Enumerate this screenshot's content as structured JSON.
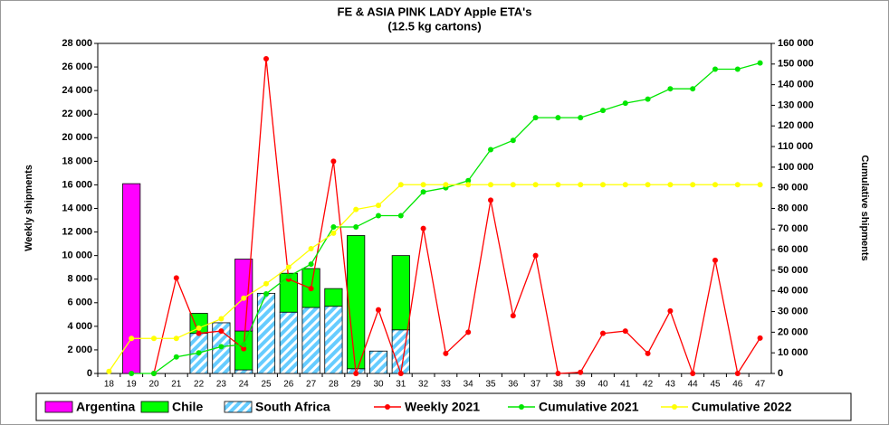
{
  "chart_data": {
    "type": "bar",
    "title": "FE & ASIA PINK LADY Apple ETA's",
    "subtitle": "(12.5 kg cartons)",
    "y_label": "Weekly shipments",
    "y2_label": "Cumulative shipments",
    "categories": [
      "18",
      "19",
      "20",
      "21",
      "22",
      "23",
      "24",
      "25",
      "26",
      "27",
      "28",
      "29",
      "30",
      "31",
      "32",
      "33",
      "34",
      "35",
      "36",
      "37",
      "38",
      "39",
      "40",
      "41",
      "42",
      "43",
      "44",
      "45",
      "46",
      "47"
    ],
    "ylim": [
      0,
      28000
    ],
    "yticks": [
      0,
      {
        "value": 2000,
        "label": "2 000"
      },
      {
        "value": 4000,
        "label": "4 000"
      },
      {
        "value": 6000,
        "label": "6 000"
      },
      {
        "value": 8000,
        "label": "8 000"
      },
      {
        "value": 10000,
        "label": "10 000"
      },
      {
        "value": 12000,
        "label": "12 000"
      },
      {
        "value": 14000,
        "label": "14 000"
      },
      {
        "value": 16000,
        "label": "16 000"
      },
      {
        "value": 18000,
        "label": "18 000"
      },
      {
        "value": 20000,
        "label": "20 000"
      },
      {
        "value": 22000,
        "label": "22 000"
      },
      {
        "value": 24000,
        "label": "24 000"
      },
      {
        "value": 26000,
        "label": "26 000"
      },
      {
        "value": 28000,
        "label": "28 000"
      }
    ],
    "y2lim": [
      0,
      160000
    ],
    "y2ticks": [
      0,
      {
        "value": 10000,
        "label": "10 000"
      },
      {
        "value": 20000,
        "label": "20 000"
      },
      {
        "value": 30000,
        "label": "30 000"
      },
      {
        "value": 40000,
        "label": "40 000"
      },
      {
        "value": 50000,
        "label": "50 000"
      },
      {
        "value": 60000,
        "label": "60 000"
      },
      {
        "value": 70000,
        "label": "70 000"
      },
      {
        "value": 80000,
        "label": "80 000"
      },
      {
        "value": 90000,
        "label": "90 000"
      },
      {
        "value": 100000,
        "label": "100 000"
      },
      {
        "value": 110000,
        "label": "110 000"
      },
      {
        "value": 120000,
        "label": "120 000"
      },
      {
        "value": 130000,
        "label": "130 000"
      },
      {
        "value": 140000,
        "label": "140 000"
      },
      {
        "value": 150000,
        "label": "150 000"
      },
      {
        "value": 160000,
        "label": "160 000"
      }
    ],
    "legend": "bottom",
    "series": [
      {
        "name": "Argentina",
        "type": "bar",
        "color": "#ff00ff",
        "values": [
          0,
          16100,
          0,
          0,
          0,
          0,
          6100,
          0,
          0,
          0,
          0,
          0,
          0,
          0,
          0,
          0,
          0,
          0,
          0,
          0,
          0,
          0,
          0,
          0,
          0,
          0,
          0,
          0,
          0,
          0
        ]
      },
      {
        "name": "Chile",
        "type": "bar",
        "color": "#00ff00",
        "values": [
          0,
          0,
          0,
          0,
          1700,
          0,
          3300,
          0,
          3300,
          3300,
          1500,
          11300,
          0,
          6300,
          0,
          0,
          0,
          0,
          0,
          0,
          0,
          0,
          0,
          0,
          0,
          0,
          0,
          0,
          0,
          0
        ]
      },
      {
        "name": "South Africa",
        "type": "bar",
        "color": "#66ccff",
        "hatch": true,
        "values": [
          0,
          0,
          0,
          0,
          3400,
          4300,
          300,
          6800,
          5200,
          5600,
          5700,
          400,
          1900,
          3700,
          0,
          0,
          0,
          0,
          0,
          0,
          0,
          0,
          0,
          0,
          0,
          0,
          0,
          0,
          0,
          0
        ]
      },
      {
        "name": "Weekly 2021",
        "type": "line",
        "color": "#ff0000",
        "values": [
          null,
          null,
          0,
          8100,
          3400,
          3600,
          2100,
          26700,
          8000,
          7200,
          18000,
          0,
          5400,
          0,
          12300,
          1700,
          3500,
          14700,
          4900,
          10000,
          0,
          100,
          3400,
          3600,
          1700,
          5300,
          0,
          9600,
          0,
          3000
        ]
      },
      {
        "name": "Cumulative 2021",
        "type": "line",
        "axis": "y2",
        "color": "#00e600",
        "values": [
          null,
          0,
          0,
          8000,
          10000,
          13000,
          14000,
          38600,
          47000,
          53000,
          71000,
          71000,
          76500,
          76500,
          88000,
          90000,
          93500,
          108500,
          113000,
          124000,
          124000,
          124000,
          127500,
          131000,
          133000,
          138000,
          138000,
          147500,
          147500,
          150500
        ]
      },
      {
        "name": "Cumulative 2022",
        "type": "line",
        "axis": "y2",
        "color": "#ffff00",
        "values": [
          1000,
          17000,
          17000,
          17000,
          22000,
          26500,
          36500,
          43500,
          51500,
          60500,
          68000,
          79500,
          81500,
          91500,
          91500,
          91500,
          91500,
          91500,
          91500,
          91500,
          91500,
          91500,
          91500,
          91500,
          91500,
          91500,
          91500,
          91500,
          91500,
          91500
        ]
      }
    ]
  }
}
